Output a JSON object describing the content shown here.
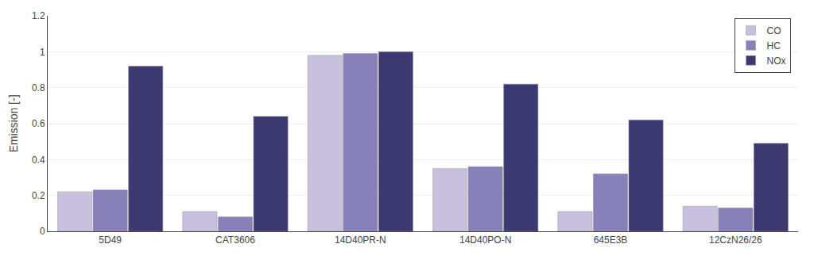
{
  "chart_data": {
    "type": "bar",
    "categories": [
      "5D49",
      "CAT3606",
      "14D40PR-N",
      "14D40PO-N",
      "645E3B",
      "12CzN26/26"
    ],
    "series": [
      {
        "name": "CO",
        "color": "#C8C0DC",
        "values": [
          0.22,
          0.11,
          0.98,
          0.35,
          0.11,
          0.14
        ]
      },
      {
        "name": "HC",
        "color": "#8880B8",
        "values": [
          0.23,
          0.08,
          0.99,
          0.36,
          0.32,
          0.13
        ]
      },
      {
        "name": "NOx",
        "color": "#3C3870",
        "values": [
          0.92,
          0.64,
          1.0,
          0.82,
          0.62,
          0.49
        ]
      }
    ],
    "ylabel": "Emission [-]",
    "ylim": [
      0.0,
      1.2
    ],
    "yticks": [
      0.0,
      0.2,
      0.4,
      0.6,
      0.8,
      1.0,
      1.2
    ],
    "grid": true,
    "legend": "upper right"
  }
}
